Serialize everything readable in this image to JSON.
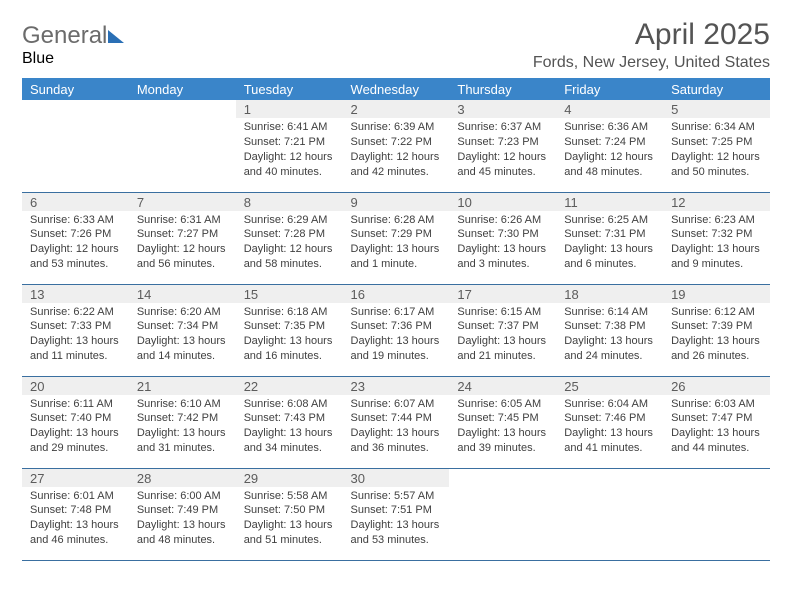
{
  "logo": {
    "line1": "General",
    "line2": "Blue"
  },
  "header": {
    "title": "April 2025",
    "location": "Fords, New Jersey, United States"
  },
  "colors": {
    "header_bg": "#3a85c9",
    "header_text": "#ffffff",
    "daynum_bg": "#efefef",
    "cell_border": "#3a6fa0",
    "title_color": "#545454",
    "logo_gray": "#6b6b6b",
    "logo_blue": "#2a6fb5"
  },
  "days_of_week": [
    "Sunday",
    "Monday",
    "Tuesday",
    "Wednesday",
    "Thursday",
    "Friday",
    "Saturday"
  ],
  "weeks": [
    [
      {
        "n": "",
        "sr": "",
        "ss": "",
        "dl": ""
      },
      {
        "n": "",
        "sr": "",
        "ss": "",
        "dl": ""
      },
      {
        "n": "1",
        "sr": "Sunrise: 6:41 AM",
        "ss": "Sunset: 7:21 PM",
        "dl": "Daylight: 12 hours and 40 minutes."
      },
      {
        "n": "2",
        "sr": "Sunrise: 6:39 AM",
        "ss": "Sunset: 7:22 PM",
        "dl": "Daylight: 12 hours and 42 minutes."
      },
      {
        "n": "3",
        "sr": "Sunrise: 6:37 AM",
        "ss": "Sunset: 7:23 PM",
        "dl": "Daylight: 12 hours and 45 minutes."
      },
      {
        "n": "4",
        "sr": "Sunrise: 6:36 AM",
        "ss": "Sunset: 7:24 PM",
        "dl": "Daylight: 12 hours and 48 minutes."
      },
      {
        "n": "5",
        "sr": "Sunrise: 6:34 AM",
        "ss": "Sunset: 7:25 PM",
        "dl": "Daylight: 12 hours and 50 minutes."
      }
    ],
    [
      {
        "n": "6",
        "sr": "Sunrise: 6:33 AM",
        "ss": "Sunset: 7:26 PM",
        "dl": "Daylight: 12 hours and 53 minutes."
      },
      {
        "n": "7",
        "sr": "Sunrise: 6:31 AM",
        "ss": "Sunset: 7:27 PM",
        "dl": "Daylight: 12 hours and 56 minutes."
      },
      {
        "n": "8",
        "sr": "Sunrise: 6:29 AM",
        "ss": "Sunset: 7:28 PM",
        "dl": "Daylight: 12 hours and 58 minutes."
      },
      {
        "n": "9",
        "sr": "Sunrise: 6:28 AM",
        "ss": "Sunset: 7:29 PM",
        "dl": "Daylight: 13 hours and 1 minute."
      },
      {
        "n": "10",
        "sr": "Sunrise: 6:26 AM",
        "ss": "Sunset: 7:30 PM",
        "dl": "Daylight: 13 hours and 3 minutes."
      },
      {
        "n": "11",
        "sr": "Sunrise: 6:25 AM",
        "ss": "Sunset: 7:31 PM",
        "dl": "Daylight: 13 hours and 6 minutes."
      },
      {
        "n": "12",
        "sr": "Sunrise: 6:23 AM",
        "ss": "Sunset: 7:32 PM",
        "dl": "Daylight: 13 hours and 9 minutes."
      }
    ],
    [
      {
        "n": "13",
        "sr": "Sunrise: 6:22 AM",
        "ss": "Sunset: 7:33 PM",
        "dl": "Daylight: 13 hours and 11 minutes."
      },
      {
        "n": "14",
        "sr": "Sunrise: 6:20 AM",
        "ss": "Sunset: 7:34 PM",
        "dl": "Daylight: 13 hours and 14 minutes."
      },
      {
        "n": "15",
        "sr": "Sunrise: 6:18 AM",
        "ss": "Sunset: 7:35 PM",
        "dl": "Daylight: 13 hours and 16 minutes."
      },
      {
        "n": "16",
        "sr": "Sunrise: 6:17 AM",
        "ss": "Sunset: 7:36 PM",
        "dl": "Daylight: 13 hours and 19 minutes."
      },
      {
        "n": "17",
        "sr": "Sunrise: 6:15 AM",
        "ss": "Sunset: 7:37 PM",
        "dl": "Daylight: 13 hours and 21 minutes."
      },
      {
        "n": "18",
        "sr": "Sunrise: 6:14 AM",
        "ss": "Sunset: 7:38 PM",
        "dl": "Daylight: 13 hours and 24 minutes."
      },
      {
        "n": "19",
        "sr": "Sunrise: 6:12 AM",
        "ss": "Sunset: 7:39 PM",
        "dl": "Daylight: 13 hours and 26 minutes."
      }
    ],
    [
      {
        "n": "20",
        "sr": "Sunrise: 6:11 AM",
        "ss": "Sunset: 7:40 PM",
        "dl": "Daylight: 13 hours and 29 minutes."
      },
      {
        "n": "21",
        "sr": "Sunrise: 6:10 AM",
        "ss": "Sunset: 7:42 PM",
        "dl": "Daylight: 13 hours and 31 minutes."
      },
      {
        "n": "22",
        "sr": "Sunrise: 6:08 AM",
        "ss": "Sunset: 7:43 PM",
        "dl": "Daylight: 13 hours and 34 minutes."
      },
      {
        "n": "23",
        "sr": "Sunrise: 6:07 AM",
        "ss": "Sunset: 7:44 PM",
        "dl": "Daylight: 13 hours and 36 minutes."
      },
      {
        "n": "24",
        "sr": "Sunrise: 6:05 AM",
        "ss": "Sunset: 7:45 PM",
        "dl": "Daylight: 13 hours and 39 minutes."
      },
      {
        "n": "25",
        "sr": "Sunrise: 6:04 AM",
        "ss": "Sunset: 7:46 PM",
        "dl": "Daylight: 13 hours and 41 minutes."
      },
      {
        "n": "26",
        "sr": "Sunrise: 6:03 AM",
        "ss": "Sunset: 7:47 PM",
        "dl": "Daylight: 13 hours and 44 minutes."
      }
    ],
    [
      {
        "n": "27",
        "sr": "Sunrise: 6:01 AM",
        "ss": "Sunset: 7:48 PM",
        "dl": "Daylight: 13 hours and 46 minutes."
      },
      {
        "n": "28",
        "sr": "Sunrise: 6:00 AM",
        "ss": "Sunset: 7:49 PM",
        "dl": "Daylight: 13 hours and 48 minutes."
      },
      {
        "n": "29",
        "sr": "Sunrise: 5:58 AM",
        "ss": "Sunset: 7:50 PM",
        "dl": "Daylight: 13 hours and 51 minutes."
      },
      {
        "n": "30",
        "sr": "Sunrise: 5:57 AM",
        "ss": "Sunset: 7:51 PM",
        "dl": "Daylight: 13 hours and 53 minutes."
      },
      {
        "n": "",
        "sr": "",
        "ss": "",
        "dl": ""
      },
      {
        "n": "",
        "sr": "",
        "ss": "",
        "dl": ""
      },
      {
        "n": "",
        "sr": "",
        "ss": "",
        "dl": ""
      }
    ]
  ]
}
